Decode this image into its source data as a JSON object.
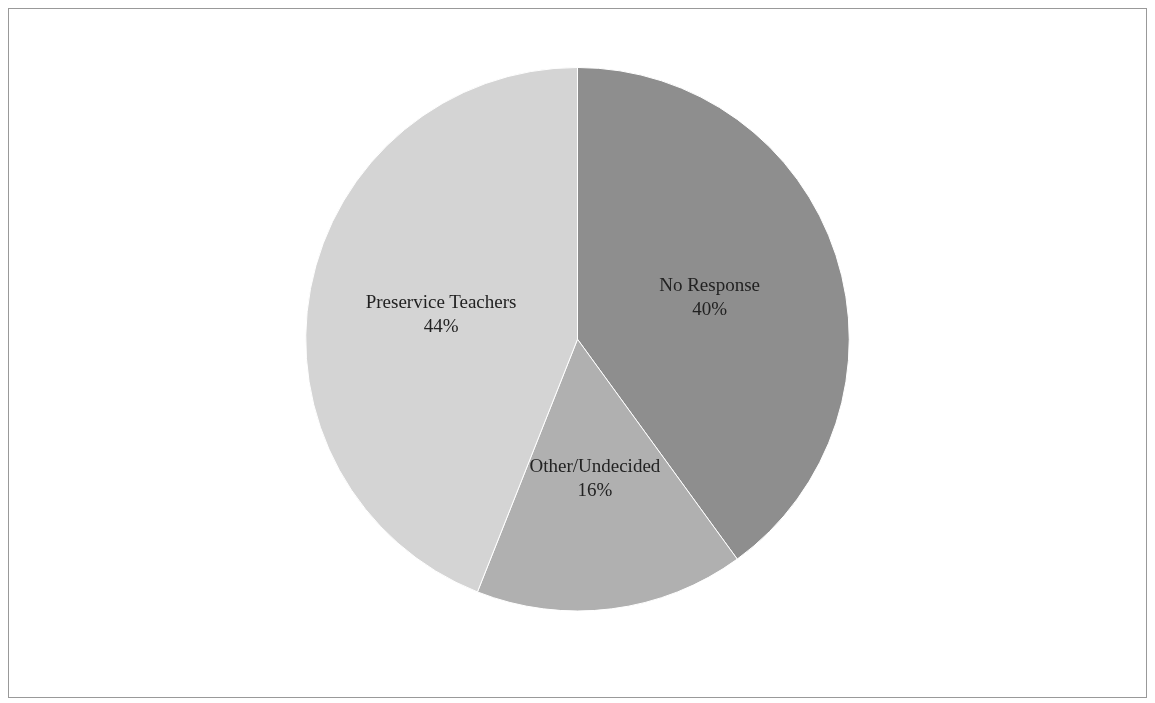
{
  "chart_data": {
    "type": "pie",
    "categories": [
      "No Response",
      "Other/Undecided",
      "Preservice Teachers"
    ],
    "values": [
      40,
      16,
      44
    ],
    "colors": [
      "#8e8e8e",
      "#b0b0b0",
      "#d4d4d4"
    ],
    "value_labels": [
      "40%",
      "16%",
      "44%"
    ],
    "legend": false
  }
}
